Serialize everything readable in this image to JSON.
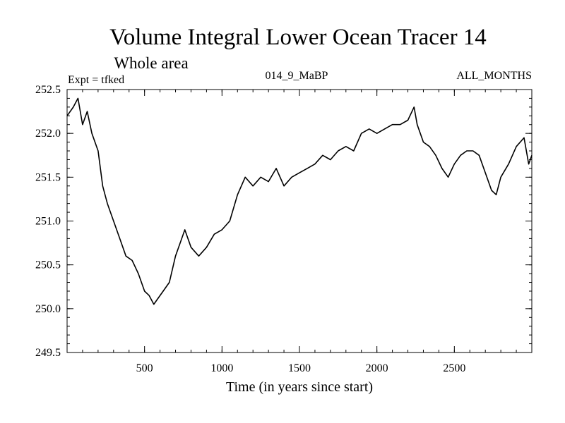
{
  "chart_data": {
    "type": "line",
    "title": "Volume Integral Lower Ocean Tracer 14",
    "subtitle": "Whole area",
    "info_left": "Expt = tfked",
    "info_center": "014_9_MaBP",
    "info_right": "ALL_MONTHS",
    "xlabel": "Time (in years since start)",
    "ylabel": "",
    "xlim": [
      0,
      3000
    ],
    "ylim": [
      249.5,
      252.5
    ],
    "xticks": [
      500,
      1000,
      1500,
      2000,
      2500
    ],
    "yticks": [
      249.5,
      250.0,
      250.5,
      251.0,
      251.5,
      252.0,
      252.5
    ],
    "ytick_labels": [
      "249.5",
      "250.0",
      "250.5",
      "251.0",
      "251.5",
      "252.0",
      "252.5"
    ],
    "grid": false,
    "series": [
      {
        "x": [
          0,
          40,
          70,
          100,
          130,
          160,
          200,
          230,
          260,
          300,
          340,
          380,
          420,
          460,
          500,
          530,
          560,
          580,
          620,
          660,
          700,
          730,
          760,
          800,
          850,
          900,
          950,
          1000,
          1050,
          1100,
          1150,
          1200,
          1250,
          1300,
          1350,
          1400,
          1450,
          1500,
          1550,
          1600,
          1650,
          1700,
          1750,
          1800,
          1850,
          1900,
          1950,
          2000,
          2050,
          2100,
          2150,
          2200,
          2240,
          2260,
          2300,
          2340,
          2380,
          2420,
          2460,
          2500,
          2540,
          2580,
          2620,
          2660,
          2700,
          2740,
          2770,
          2800,
          2850,
          2900,
          2950,
          2980,
          3000
        ],
        "y": [
          252.2,
          252.3,
          252.4,
          252.1,
          252.25,
          252.0,
          251.8,
          251.4,
          251.2,
          251.0,
          250.8,
          250.6,
          250.55,
          250.4,
          250.2,
          250.15,
          250.05,
          250.1,
          250.2,
          250.3,
          250.6,
          250.75,
          250.9,
          250.7,
          250.6,
          250.7,
          250.85,
          250.9,
          251.0,
          251.3,
          251.5,
          251.4,
          251.5,
          251.45,
          251.6,
          251.4,
          251.5,
          251.55,
          251.6,
          251.65,
          251.75,
          251.7,
          251.8,
          251.85,
          251.8,
          252.0,
          252.05,
          252.0,
          252.05,
          252.1,
          252.1,
          252.15,
          252.3,
          252.1,
          251.9,
          251.85,
          251.75,
          251.6,
          251.5,
          251.65,
          251.75,
          251.8,
          251.8,
          251.75,
          251.55,
          251.35,
          251.3,
          251.5,
          251.65,
          251.85,
          251.95,
          251.65,
          251.75
        ]
      }
    ]
  }
}
